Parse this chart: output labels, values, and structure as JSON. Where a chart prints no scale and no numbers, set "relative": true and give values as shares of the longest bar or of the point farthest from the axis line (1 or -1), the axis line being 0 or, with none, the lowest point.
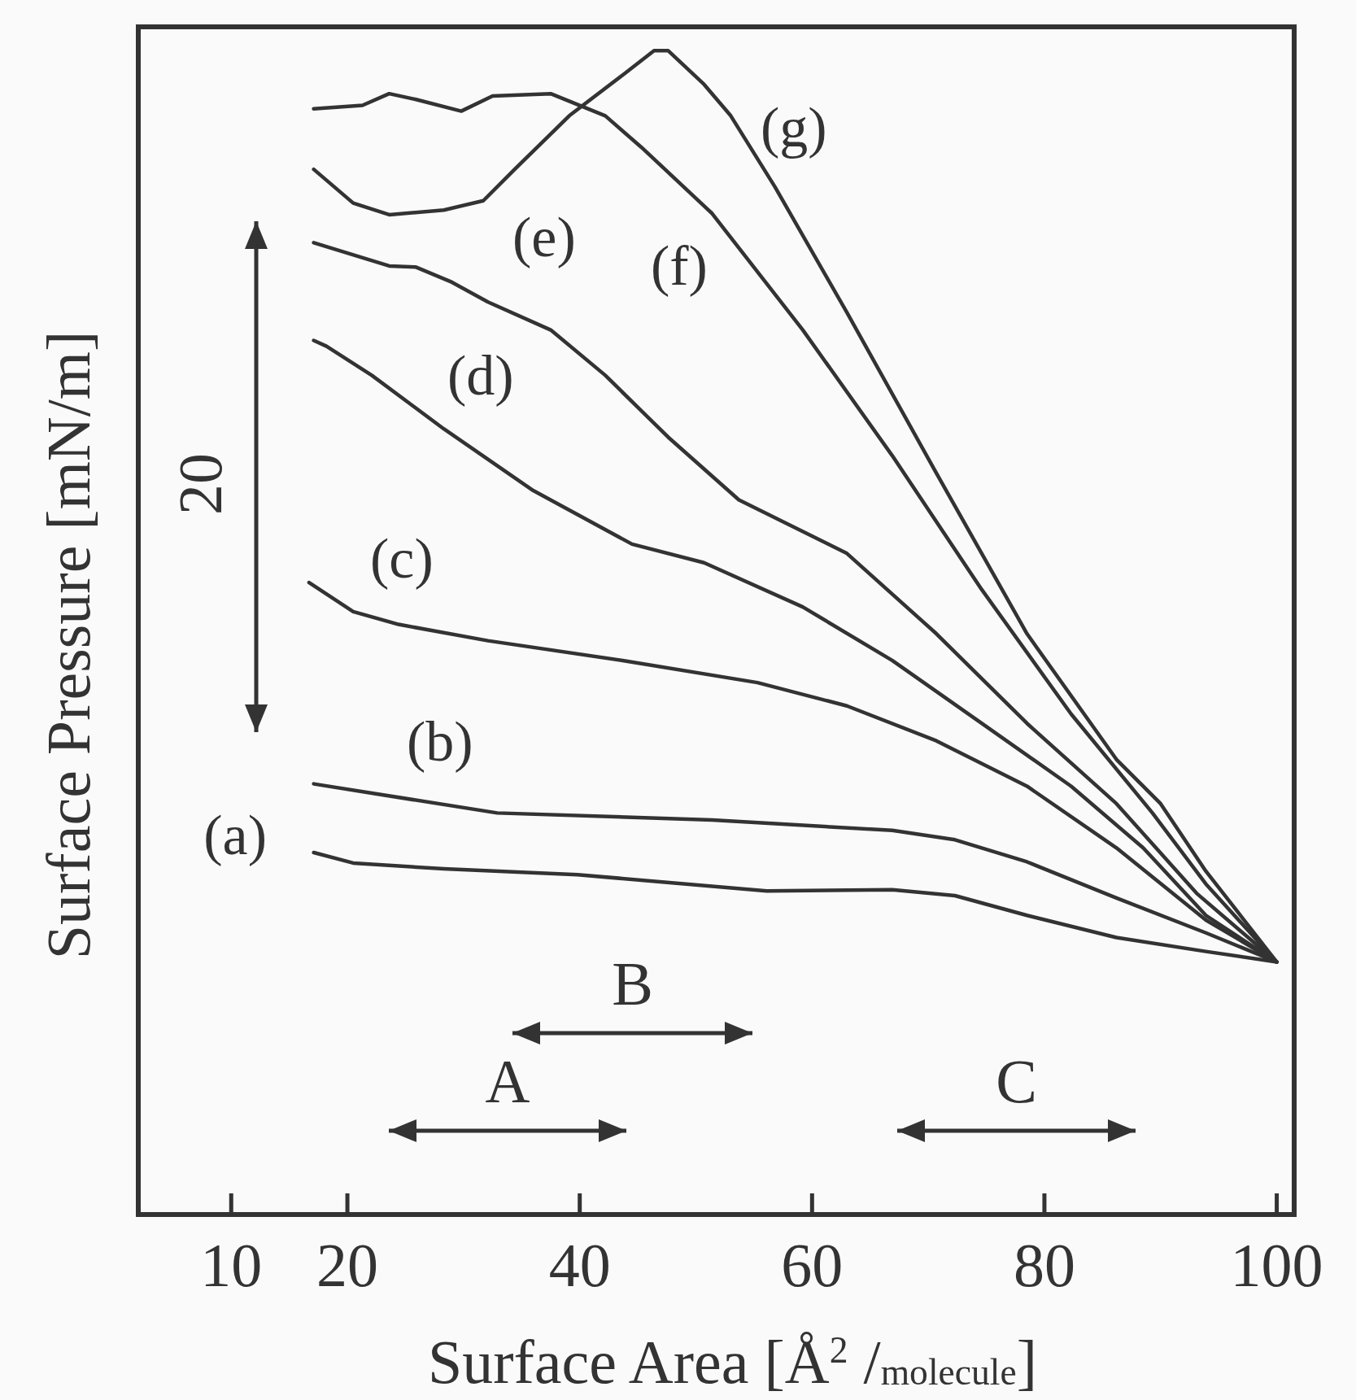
{
  "chart_data": {
    "type": "line",
    "relative": true,
    "xlabel": "Surface Area [Å$^{2}$ /$_{molecule}$]",
    "ylabel": "Surface Pressure [mN/m]",
    "xlim": [
      2,
      101.5
    ],
    "xticks": [
      10,
      20,
      40,
      60,
      80,
      100
    ],
    "grid": false,
    "marker": "none",
    "line_style": "solid",
    "annotations": [
      "20",
      "A",
      "B",
      "C"
    ],
    "series": [
      {
        "name": "(a)",
        "color": "#333333",
        "x": [
          17.1,
          20.5,
          28.3,
          39.8,
          56.1,
          66.9,
          72.3,
          78.5,
          86.2,
          93.9,
          100
        ],
        "values": [
          0.311,
          0.302,
          0.297,
          0.292,
          0.278,
          0.279,
          0.274,
          0.257,
          0.238,
          0.226,
          0.217
        ]
      },
      {
        "name": "(b)",
        "color": "#333333",
        "x": [
          17.1,
          22.1,
          32.9,
          51.4,
          66.9,
          72.3,
          78.5,
          86.2,
          93.9,
          100
        ],
        "values": [
          0.37,
          0.362,
          0.345,
          0.339,
          0.33,
          0.322,
          0.303,
          0.272,
          0.242,
          0.217
        ]
      },
      {
        "name": "(c)",
        "color": "#333333",
        "x": [
          16.7,
          20.5,
          24.4,
          32.1,
          43.7,
          55.3,
          63.0,
          70.7,
          78.5,
          86.2,
          93.9,
          100
        ],
        "values": [
          0.543,
          0.518,
          0.507,
          0.493,
          0.476,
          0.457,
          0.437,
          0.407,
          0.368,
          0.315,
          0.253,
          0.217
        ]
      },
      {
        "name": "(d)",
        "color": "#333333",
        "x": [
          17.1,
          18.2,
          22.1,
          28.3,
          36.0,
          44.5,
          50.7,
          59.2,
          66.9,
          74.6,
          82.3,
          88.5,
          93.9,
          100
        ],
        "values": [
          0.751,
          0.746,
          0.721,
          0.675,
          0.622,
          0.576,
          0.56,
          0.522,
          0.476,
          0.422,
          0.368,
          0.315,
          0.257,
          0.217
        ]
      },
      {
        "name": "(e)",
        "color": "#333333",
        "x": [
          17.1,
          23.6,
          25.9,
          29.0,
          32.1,
          37.5,
          42.2,
          47.6,
          53.7,
          63.0,
          70.7,
          78.5,
          86.2,
          93.1,
          100
        ],
        "values": [
          0.835,
          0.815,
          0.814,
          0.801,
          0.784,
          0.76,
          0.721,
          0.668,
          0.614,
          0.568,
          0.499,
          0.422,
          0.353,
          0.276,
          0.217
        ]
      },
      {
        "name": "(f)",
        "color": "#333333",
        "x": [
          17.1,
          21.3,
          23.6,
          25.9,
          29.8,
          32.5,
          37.5,
          42.2,
          45.3,
          51.4,
          59.2,
          66.9,
          74.6,
          82.3,
          89.3,
          93.9,
          100
        ],
        "values": [
          0.95,
          0.953,
          0.963,
          0.958,
          0.948,
          0.961,
          0.963,
          0.944,
          0.917,
          0.86,
          0.76,
          0.652,
          0.537,
          0.43,
          0.345,
          0.284,
          0.217
        ]
      },
      {
        "name": "(g)",
        "color": "#333333",
        "x": [
          17.1,
          20.5,
          23.6,
          28.3,
          31.7,
          34.4,
          39.1,
          43.7,
          46.4,
          47.6,
          50.7,
          53.0,
          56.8,
          63.0,
          70.7,
          78.5,
          86.2,
          90.0,
          93.9,
          100
        ],
        "values": [
          0.898,
          0.869,
          0.859,
          0.863,
          0.871,
          0.898,
          0.944,
          0.979,
          1,
          1,
          0.971,
          0.944,
          0.883,
          0.775,
          0.637,
          0.499,
          0.391,
          0.353,
          0.295,
          0.217
        ]
      }
    ]
  }
}
